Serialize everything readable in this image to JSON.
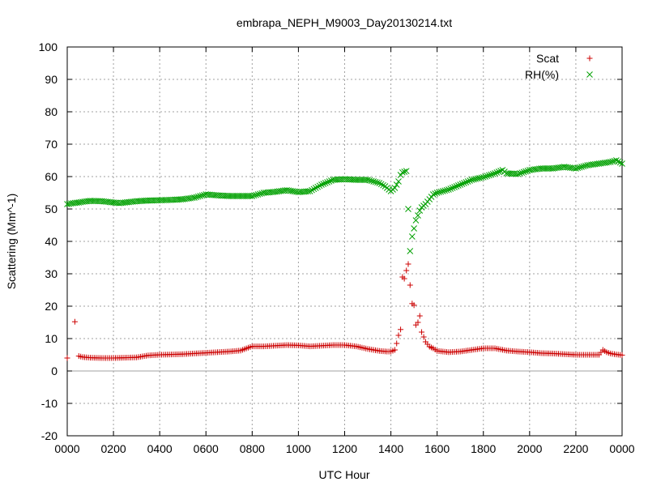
{
  "chart_data": {
    "type": "scatter",
    "title": "embrapa_NEPH_M9003_Day20130214.txt",
    "xlabel": "UTC Hour",
    "ylabel": "Scattering (Mm^-1)",
    "xlim": [
      0,
      24
    ],
    "ylim": [
      -20,
      100
    ],
    "x_ticks": [
      0,
      2,
      4,
      6,
      8,
      10,
      12,
      14,
      16,
      18,
      20,
      22,
      24
    ],
    "x_tick_labels": [
      "0000",
      "0200",
      "0400",
      "0600",
      "0800",
      "1000",
      "1200",
      "1400",
      "1600",
      "1800",
      "2000",
      "2200",
      "0000"
    ],
    "y_ticks": [
      -20,
      -10,
      0,
      10,
      20,
      30,
      40,
      50,
      60,
      70,
      80,
      90,
      100
    ],
    "grid": true,
    "legend_position": "top-right",
    "series": [
      {
        "name": "Scat",
        "marker": "+",
        "color": "#cc0000",
        "points": [
          [
            0.0,
            4.0
          ],
          [
            0.33,
            15.2
          ],
          [
            0.5,
            4.6
          ],
          [
            0.67,
            4.3
          ],
          [
            0.83,
            4.2
          ],
          [
            1.0,
            4.1
          ],
          [
            1.5,
            4.0
          ],
          [
            2.0,
            4.0
          ],
          [
            2.5,
            4.1
          ],
          [
            3.0,
            4.2
          ],
          [
            3.5,
            4.8
          ],
          [
            4.0,
            5.0
          ],
          [
            4.5,
            5.1
          ],
          [
            5.0,
            5.2
          ],
          [
            5.5,
            5.4
          ],
          [
            6.0,
            5.6
          ],
          [
            6.5,
            5.8
          ],
          [
            7.0,
            6.0
          ],
          [
            7.5,
            6.3
          ],
          [
            7.83,
            7.2
          ],
          [
            8.0,
            7.6
          ],
          [
            8.5,
            7.6
          ],
          [
            9.0,
            7.8
          ],
          [
            9.5,
            8.0
          ],
          [
            10.0,
            7.9
          ],
          [
            10.5,
            7.6
          ],
          [
            11.0,
            7.8
          ],
          [
            11.5,
            8.0
          ],
          [
            12.0,
            8.0
          ],
          [
            12.5,
            7.6
          ],
          [
            13.0,
            6.8
          ],
          [
            13.5,
            6.2
          ],
          [
            13.83,
            6.0
          ],
          [
            14.0,
            6.0
          ],
          [
            14.17,
            6.5
          ],
          [
            14.25,
            8.5
          ],
          [
            14.33,
            11.0
          ],
          [
            14.42,
            12.8
          ],
          [
            14.5,
            29.0
          ],
          [
            14.58,
            28.5
          ],
          [
            14.67,
            31.0
          ],
          [
            14.75,
            33.0
          ],
          [
            14.83,
            26.5
          ],
          [
            14.92,
            20.8
          ],
          [
            15.0,
            20.3
          ],
          [
            15.08,
            14.2
          ],
          [
            15.17,
            15.0
          ],
          [
            15.25,
            17.0
          ],
          [
            15.33,
            12.0
          ],
          [
            15.42,
            10.5
          ],
          [
            15.5,
            9.0
          ],
          [
            15.67,
            7.5
          ],
          [
            15.83,
            7.0
          ],
          [
            16.0,
            6.2
          ],
          [
            16.5,
            5.8
          ],
          [
            17.0,
            6.0
          ],
          [
            17.5,
            6.5
          ],
          [
            18.0,
            7.0
          ],
          [
            18.5,
            7.0
          ],
          [
            19.0,
            6.3
          ],
          [
            19.5,
            6.0
          ],
          [
            20.0,
            5.8
          ],
          [
            20.5,
            5.5
          ],
          [
            21.0,
            5.4
          ],
          [
            21.5,
            5.2
          ],
          [
            22.0,
            5.0
          ],
          [
            22.5,
            5.0
          ],
          [
            23.0,
            5.0
          ],
          [
            23.17,
            6.5
          ],
          [
            23.33,
            5.8
          ],
          [
            23.5,
            5.4
          ],
          [
            23.75,
            5.1
          ],
          [
            24.0,
            4.9
          ]
        ]
      },
      {
        "name": "RH(%)",
        "marker": "x",
        "color": "#00a000",
        "points": [
          [
            0.0,
            51.5
          ],
          [
            0.25,
            51.8
          ],
          [
            0.5,
            52.0
          ],
          [
            0.75,
            52.3
          ],
          [
            1.0,
            52.5
          ],
          [
            1.5,
            52.4
          ],
          [
            2.0,
            52.0
          ],
          [
            2.25,
            51.8
          ],
          [
            2.5,
            52.0
          ],
          [
            3.0,
            52.4
          ],
          [
            3.5,
            52.6
          ],
          [
            4.0,
            52.7
          ],
          [
            4.5,
            52.8
          ],
          [
            5.0,
            53.0
          ],
          [
            5.5,
            53.5
          ],
          [
            6.0,
            54.5
          ],
          [
            6.5,
            54.2
          ],
          [
            7.0,
            54.0
          ],
          [
            7.5,
            54.0
          ],
          [
            8.0,
            54.0
          ],
          [
            8.25,
            54.5
          ],
          [
            8.5,
            55.0
          ],
          [
            9.0,
            55.3
          ],
          [
            9.5,
            55.8
          ],
          [
            10.0,
            55.2
          ],
          [
            10.5,
            55.5
          ],
          [
            11.0,
            57.5
          ],
          [
            11.5,
            59.0
          ],
          [
            12.0,
            59.2
          ],
          [
            12.5,
            59.0
          ],
          [
            13.0,
            59.0
          ],
          [
            13.25,
            58.5
          ],
          [
            13.5,
            58.0
          ],
          [
            13.75,
            57.0
          ],
          [
            14.0,
            55.5
          ],
          [
            14.17,
            56.5
          ],
          [
            14.33,
            58.5
          ],
          [
            14.42,
            60.5
          ],
          [
            14.5,
            61.3
          ],
          [
            14.67,
            61.7
          ],
          [
            14.75,
            50.0
          ],
          [
            14.83,
            37.0
          ],
          [
            14.92,
            41.5
          ],
          [
            15.0,
            44.0
          ],
          [
            15.08,
            46.5
          ],
          [
            15.17,
            48.0
          ],
          [
            15.25,
            49.5
          ],
          [
            15.33,
            50.5
          ],
          [
            15.5,
            51.5
          ],
          [
            15.67,
            53.0
          ],
          [
            15.83,
            54.5
          ],
          [
            16.0,
            55.0
          ],
          [
            16.5,
            56.0
          ],
          [
            17.0,
            57.5
          ],
          [
            17.5,
            59.0
          ],
          [
            18.0,
            59.8
          ],
          [
            18.5,
            61.0
          ],
          [
            18.83,
            62.0
          ],
          [
            19.0,
            61.0
          ],
          [
            19.5,
            60.8
          ],
          [
            20.0,
            62.0
          ],
          [
            20.5,
            62.5
          ],
          [
            21.0,
            62.5
          ],
          [
            21.5,
            63.0
          ],
          [
            22.0,
            62.5
          ],
          [
            22.5,
            63.5
          ],
          [
            23.0,
            64.0
          ],
          [
            23.5,
            64.5
          ],
          [
            23.75,
            65.0
          ],
          [
            24.0,
            64.0
          ]
        ]
      }
    ]
  }
}
